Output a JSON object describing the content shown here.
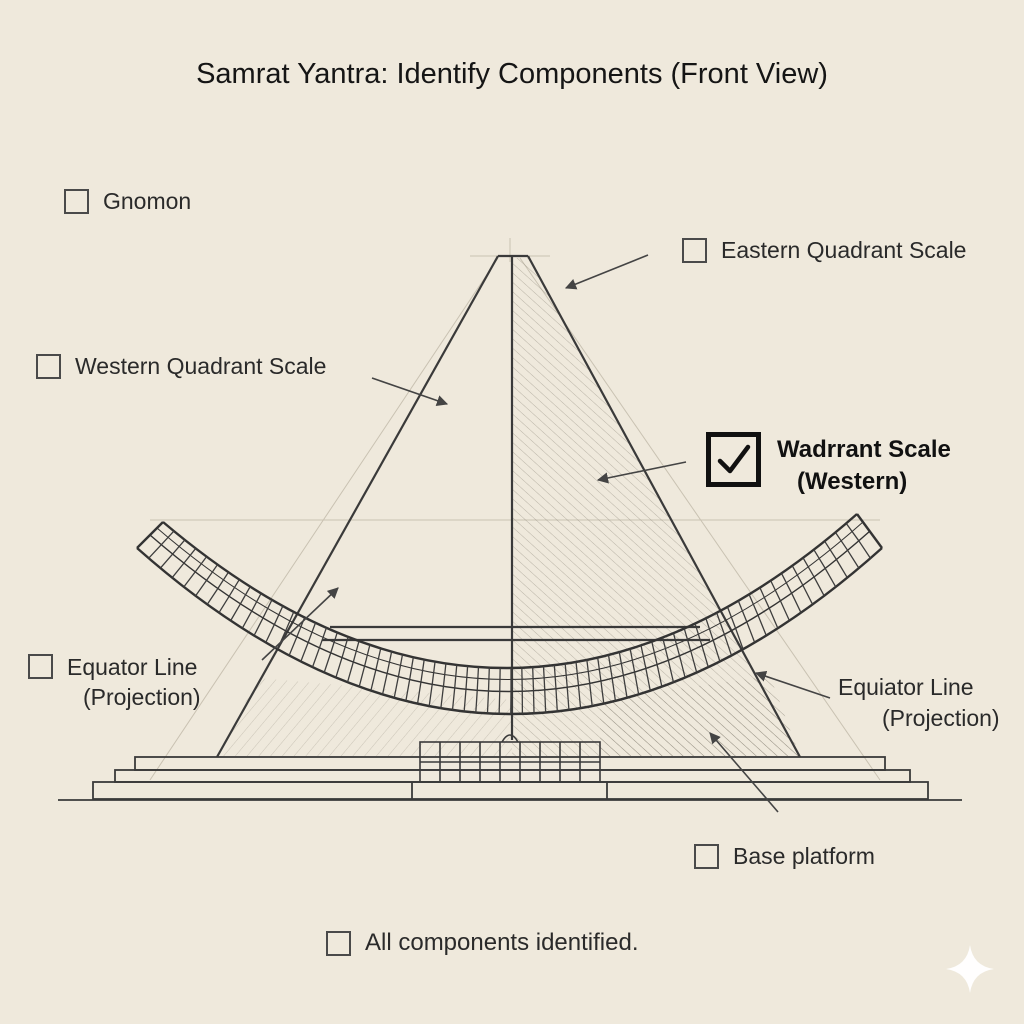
{
  "title": "Samrat Yantra: Identify Components (Front View)",
  "labels": {
    "gnomon": "Gnomon",
    "eastern_quadrant": "Eastern Quadrant Scale",
    "western_quadrant": "Western Quadrant Scale",
    "checked_line1": "Wadrrant Scale",
    "checked_line2": "(Western)",
    "equator_left_line1": "Equator Line",
    "equator_left_line2": "(Projection)",
    "equator_right_line1": "Equiator Line",
    "equator_right_line2": "(Projection)",
    "base_platform": "Base platform",
    "all_identified": "All components identified."
  },
  "checked": {
    "gnomon": false,
    "eastern_quadrant": false,
    "western_quadrant": false,
    "wadrrant_scale": true,
    "equator_left": false,
    "base_platform": false,
    "all_identified": false
  },
  "icons": [
    "checkmark-icon",
    "sparkle-icon"
  ],
  "colors": {
    "paper": "#efe9dc",
    "ink": "#3a3a3a",
    "shade": "#8a8578"
  }
}
